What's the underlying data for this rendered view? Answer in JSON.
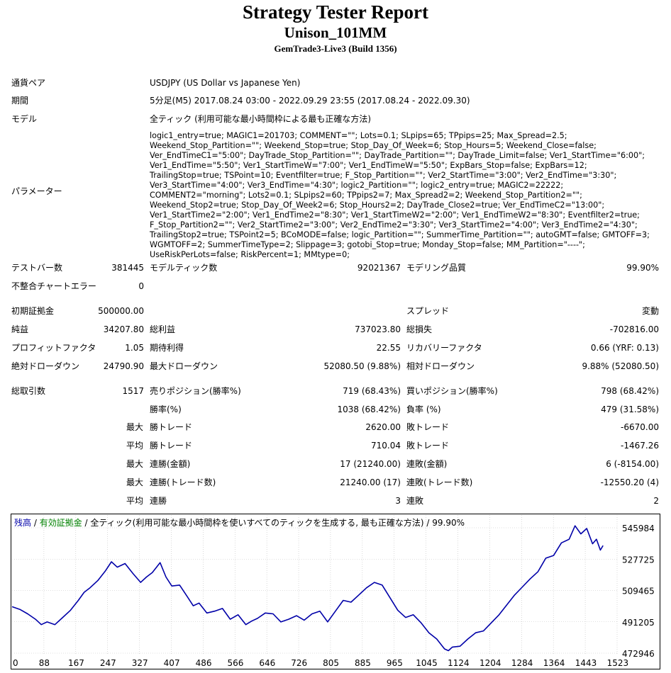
{
  "header": {
    "title": "Strategy Tester Report",
    "ea_name": "Unison_101MM",
    "server": "GemTrade3-Live3 (Build 1356)"
  },
  "info": {
    "symbol_label": "通貨ペア",
    "symbol_value": "USDJPY (US Dollar vs Japanese Yen)",
    "period_label": "期間",
    "period_value": "5分足(M5) 2017.08.24 03:00 - 2022.09.29 23:55 (2017.08.24 - 2022.09.30)",
    "model_label": "モデル",
    "model_value": "全ティック (利用可能な最小時間枠による最も正確な方法)",
    "params_label": "パラメーター",
    "params_value": "logic1_entry=true; MAGIC1=201703; COMMENT=\"\"; Lots=0.1; SLpips=65; TPpips=25; Max_Spread=2.5; Weekend_Stop_Partition=\"\"; Weekend_Stop=true; Stop_Day_Of_Week=6; Stop_Hours=5; Weekend_Close=false; Ver_EndTimeC1=\"5:00\"; DayTrade_Stop_Partition=\"\"; DayTrade_Partition=\"\"; DayTrade_Limit=false; Ver1_StartTime=\"6:00\"; Ver1_EndTime=\"5:50\"; Ver1_StartTimeW=\"7:00\"; Ver1_EndTimeW=\"5:50\"; ExpBars_Stop=false; ExpBars=12; TrailingStop=true; TSPoint=10; Eventfilter=true; F_Stop_Partition=\"\"; Ver2_StartTime=\"3:00\"; Ver2_EndTime=\"3:30\"; Ver3_StartTime=\"4:00\"; Ver3_EndTime=\"4:30\"; logic2_Partition=\"\"; logic2_entry=true; MAGIC2=22222; COMMENT2=\"morning\"; Lots2=0.1; SLpips2=60; TPpips2=7; Max_Spread2=2; Weekend_Stop_Partition2=\"\"; Weekend_Stop2=true; Stop_Day_Of_Week2=6; Stop_Hours2=2; DayTrade_Close2=true; Ver_EndTimeC2=\"13:00\"; Ver1_StartTime2=\"2:00\"; Ver1_EndTime2=\"8:30\"; Ver1_StartTimeW2=\"2:00\"; Ver1_EndTimeW2=\"8:30\"; Eventfilter2=true; F_Stop_Partition2=\"\"; Ver2_StartTime2=\"3:00\"; Ver2_EndTime2=\"3:30\"; Ver3_StartTime2=\"4:00\"; Ver3_EndTime2=\"4:30\"; TrailingStop2=true; TSPoint2=5; BCoMODE=false; logic_Partition=\"\"; SummerTime_Partition=\"\"; autoGMT=false; GMTOFF=3; WGMTOFF=2; SummerTimeType=2; Slippage=3; gotobi_Stop=true; Monday_Stop=false; MM_Partition=\"----\"; UseRiskPerLots=false; RiskPercent=1; MMtype=0;"
  },
  "stats": {
    "bars_label": "テストバー数",
    "bars_value": "381445",
    "ticks_label": "モデルティック数",
    "ticks_value": "92021367",
    "quality_label": "モデリング品質",
    "quality_value": "99.90%",
    "mismatch_label": "不整合チャートエラー",
    "mismatch_value": "0",
    "deposit_label": "初期証拠金",
    "deposit_value": "500000.00",
    "spread_label": "スプレッド",
    "spread_value": "変動",
    "net_label": "純益",
    "net_value": "34207.80",
    "gross_profit_label": "総利益",
    "gross_profit_value": "737023.80",
    "gross_loss_label": "総損失",
    "gross_loss_value": "-702816.00",
    "pf_label": "プロフィットファクタ",
    "pf_value": "1.05",
    "payoff_label": "期待利得",
    "payoff_value": "22.55",
    "recovery_label": "リカバリーファクタ",
    "recovery_value": "0.66 (YRF: 0.13)",
    "abs_dd_label": "絶対ドローダウン",
    "abs_dd_value": "24790.90",
    "max_dd_label": "最大ドローダウン",
    "max_dd_value": "52080.50 (9.88%)",
    "rel_dd_label": "相対ドローダウン",
    "rel_dd_value": "9.88% (52080.50)",
    "total_trades_label": "総取引数",
    "total_trades_value": "1517",
    "short_label": "売りポジション(勝率%)",
    "short_value": "719 (68.43%)",
    "long_label": "買いポジション(勝率%)",
    "long_value": "798 (68.42%)",
    "win_rate_label": "勝率(%)",
    "win_rate_value": "1038 (68.42%)",
    "loss_rate_label": "負率 (%)",
    "loss_rate_value": "479 (31.58%)",
    "max1": "最大",
    "largest_win_label": "勝トレード",
    "largest_win_value": "2620.00",
    "largest_loss_label": "敗トレード",
    "largest_loss_value": "-6670.00",
    "avg1": "平均",
    "avg_win_label": "勝トレード",
    "avg_win_value": "710.04",
    "avg_loss_label": "敗トレード",
    "avg_loss_value": "-1467.26",
    "max2": "最大",
    "cons_wins_money_label": "連勝(金額)",
    "cons_wins_money_value": "17 (21240.00)",
    "cons_losses_money_label": "連敗(金額)",
    "cons_losses_money_value": "6 (-8154.00)",
    "max3": "最大",
    "cons_wins_count_label": "連勝(トレード数)",
    "cons_wins_count_value": "21240.00 (17)",
    "cons_losses_count_label": "連敗(トレード数)",
    "cons_losses_count_value": "-12550.20 (4)",
    "avg2": "平均",
    "avg_cons_wins_label": "連勝",
    "avg_cons_wins_value": "3",
    "avg_cons_losses_label": "連敗",
    "avg_cons_losses_value": "2"
  },
  "chart_data": {
    "type": "line",
    "legend": {
      "balance": "残高",
      "sep1": " / ",
      "equity": "有効証拠金",
      "sep2": " / ",
      "desc": "全ティック(利用可能な最小時間枠を使いすべてのティックを生成する, 最も正確な方法) / 99.90%"
    },
    "colors": {
      "line": "#0000a8",
      "balance_label": "#0000a8",
      "equity_label": "#008000",
      "grid": "#c0c0c0"
    },
    "xlim": [
      0,
      1553
    ],
    "ylim": [
      472946,
      551000
    ],
    "x_ticks": [
      "0",
      "88",
      "167",
      "247",
      "327",
      "407",
      "486",
      "566",
      "646",
      "726",
      "805",
      "885",
      "965",
      "1045",
      "1124",
      "1204",
      "1284",
      "1364",
      "1443",
      "1523"
    ],
    "y_ticks": [
      "545984",
      "527725",
      "509465",
      "491205",
      "472946"
    ],
    "x": [
      0,
      20,
      40,
      60,
      75,
      90,
      110,
      130,
      150,
      170,
      185,
      200,
      220,
      240,
      255,
      270,
      290,
      310,
      330,
      345,
      360,
      380,
      395,
      410,
      430,
      450,
      465,
      480,
      500,
      520,
      540,
      560,
      580,
      600,
      615,
      630,
      650,
      670,
      690,
      710,
      730,
      750,
      770,
      790,
      810,
      830,
      850,
      870,
      890,
      910,
      930,
      950,
      970,
      990,
      1010,
      1030,
      1050,
      1070,
      1090,
      1110,
      1120,
      1130,
      1150,
      1170,
      1190,
      1210,
      1230,
      1250,
      1270,
      1290,
      1310,
      1330,
      1350,
      1370,
      1390,
      1410,
      1430,
      1445,
      1460,
      1475,
      1490,
      1500,
      1510,
      1517
    ],
    "y": [
      500000,
      498500,
      496000,
      493000,
      490000,
      491500,
      490000,
      494000,
      498000,
      503500,
      508000,
      510500,
      514500,
      520000,
      525000,
      522000,
      524000,
      518500,
      513500,
      516500,
      519000,
      524500,
      516500,
      511500,
      512000,
      505500,
      500500,
      502000,
      496500,
      497500,
      499000,
      493000,
      495500,
      490000,
      492000,
      493500,
      496500,
      496000,
      491500,
      493000,
      495000,
      492500,
      496000,
      497500,
      491500,
      497500,
      503500,
      502500,
      506500,
      510500,
      513500,
      512000,
      505000,
      498000,
      494000,
      495500,
      491000,
      485500,
      482000,
      476500,
      475500,
      477500,
      478000,
      482000,
      485500,
      486500,
      491000,
      495500,
      501000,
      506500,
      511000,
      515500,
      519500,
      527000,
      528500,
      535500,
      537500,
      545000,
      540500,
      543500,
      535000,
      537500,
      531500,
      534000
    ]
  }
}
